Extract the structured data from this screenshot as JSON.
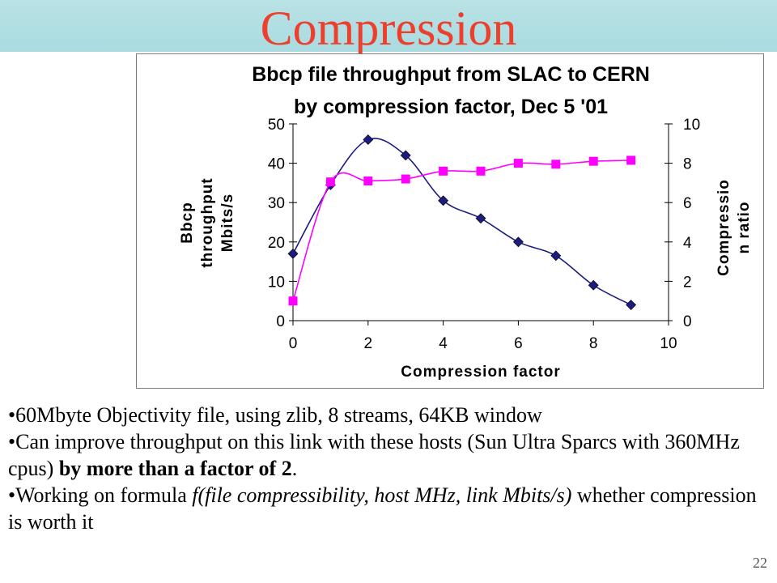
{
  "slide": {
    "title": "Compression",
    "number": "22"
  },
  "bullets": {
    "b1": "•60Mbyte Objectivity file, using zlib, 8 streams, 64KB window",
    "b2_pre": "•Can improve throughput on this link with these hosts (Sun Ultra Sparcs with 360MHz cpus) ",
    "b2_bold": "by more than a factor of 2",
    "b2_post": ".",
    "b3_pre": "•Working on formula ",
    "b3_italic": "f(file compressibility, host MHz, link Mbits/s)",
    "b3_post": " whether compression is worth it"
  },
  "colors": {
    "title_text": "#ee3f2c",
    "title_bar": "#b9e2e5",
    "throughput_series": "#1c1c7e",
    "ratio_series": "#ff00ff"
  },
  "chart_data": {
    "type": "line",
    "title_line1": "Bbcp file throughput from SLAC to CERN",
    "title_line2": "by compression factor, Dec 5 '01",
    "xlabel": "Compression factor",
    "ylabel_lines": [
      "Bbcp",
      "throughput",
      "Mbits/s"
    ],
    "y2label_lines": [
      "Compressio",
      "n ratio"
    ],
    "xlim": [
      0,
      10
    ],
    "ylim": [
      0,
      50
    ],
    "y2lim": [
      0,
      10
    ],
    "xticks": [
      "0",
      "2",
      "4",
      "6",
      "8",
      "10"
    ],
    "yticks": [
      "0",
      "10",
      "20",
      "30",
      "40",
      "50"
    ],
    "y2ticks": [
      "0",
      "2",
      "4",
      "6",
      "8",
      "10"
    ],
    "grid": false,
    "legend": "none",
    "series": [
      {
        "axis": "left",
        "marker": "diamond",
        "x": [
          0,
          1,
          2,
          3,
          4,
          5,
          6,
          7,
          8,
          9
        ],
        "y": [
          17,
          34.5,
          46,
          42,
          30.5,
          26,
          20,
          16.5,
          9,
          4
        ]
      },
      {
        "axis": "right",
        "marker": "square",
        "x": [
          0,
          1,
          2,
          3,
          4,
          5,
          6,
          7,
          8,
          9
        ],
        "y": [
          1,
          7.05,
          7.1,
          7.2,
          7.6,
          7.6,
          8,
          7.95,
          8.1,
          8.15
        ]
      }
    ]
  }
}
